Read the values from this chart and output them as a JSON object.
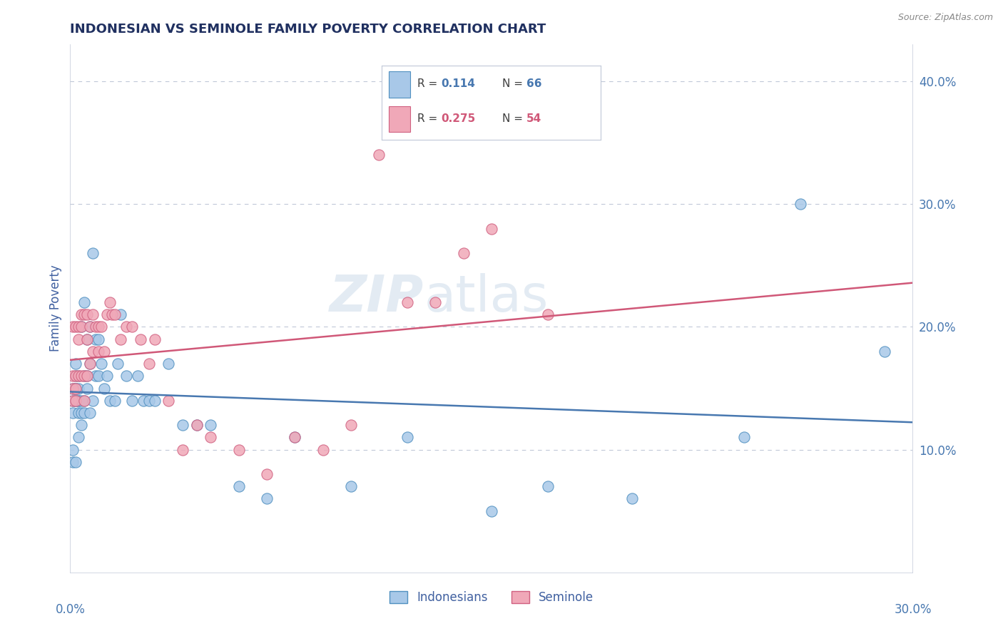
{
  "title": "INDONESIAN VS SEMINOLE FAMILY POVERTY CORRELATION CHART",
  "source": "Source: ZipAtlas.com",
  "ylabel": "Family Poverty",
  "xlim": [
    0.0,
    0.3
  ],
  "ylim": [
    0.0,
    0.43
  ],
  "yticks": [
    0.1,
    0.2,
    0.3,
    0.4
  ],
  "ytick_labels": [
    "10.0%",
    "20.0%",
    "30.0%",
    "40.0%"
  ],
  "xtick_left": "0.0%",
  "xtick_right": "30.0%",
  "blue_color": "#a8c8e8",
  "pink_color": "#f0a8b8",
  "blue_edge_color": "#5090c0",
  "pink_edge_color": "#d06080",
  "blue_line_color": "#4878b0",
  "pink_line_color": "#d05878",
  "title_color": "#203060",
  "axis_label_color": "#4060a0",
  "tick_label_color": "#4878b0",
  "watermark_text": "ZIPatlas",
  "legend_r1_val": "0.114",
  "legend_n1_val": "66",
  "legend_r2_val": "0.275",
  "legend_n2_val": "54",
  "indonesians_x": [
    0.001,
    0.001,
    0.001,
    0.001,
    0.001,
    0.002,
    0.002,
    0.002,
    0.002,
    0.002,
    0.002,
    0.002,
    0.003,
    0.003,
    0.003,
    0.003,
    0.003,
    0.003,
    0.004,
    0.004,
    0.004,
    0.004,
    0.005,
    0.005,
    0.005,
    0.005,
    0.006,
    0.006,
    0.006,
    0.007,
    0.007,
    0.007,
    0.008,
    0.008,
    0.009,
    0.009,
    0.01,
    0.01,
    0.011,
    0.012,
    0.013,
    0.014,
    0.016,
    0.017,
    0.018,
    0.02,
    0.022,
    0.024,
    0.026,
    0.028,
    0.03,
    0.035,
    0.04,
    0.045,
    0.05,
    0.06,
    0.07,
    0.08,
    0.1,
    0.12,
    0.15,
    0.17,
    0.2,
    0.24,
    0.26,
    0.29
  ],
  "indonesians_y": [
    0.13,
    0.14,
    0.15,
    0.09,
    0.1,
    0.14,
    0.14,
    0.15,
    0.15,
    0.16,
    0.17,
    0.09,
    0.13,
    0.14,
    0.14,
    0.15,
    0.16,
    0.11,
    0.12,
    0.13,
    0.14,
    0.2,
    0.13,
    0.14,
    0.16,
    0.22,
    0.15,
    0.16,
    0.19,
    0.13,
    0.17,
    0.2,
    0.14,
    0.26,
    0.16,
    0.19,
    0.16,
    0.19,
    0.17,
    0.15,
    0.16,
    0.14,
    0.14,
    0.17,
    0.21,
    0.16,
    0.14,
    0.16,
    0.14,
    0.14,
    0.14,
    0.17,
    0.12,
    0.12,
    0.12,
    0.07,
    0.06,
    0.11,
    0.07,
    0.11,
    0.05,
    0.07,
    0.06,
    0.11,
    0.3,
    0.18
  ],
  "seminole_x": [
    0.001,
    0.001,
    0.001,
    0.001,
    0.002,
    0.002,
    0.002,
    0.002,
    0.003,
    0.003,
    0.003,
    0.004,
    0.004,
    0.004,
    0.005,
    0.005,
    0.005,
    0.006,
    0.006,
    0.006,
    0.007,
    0.007,
    0.008,
    0.008,
    0.009,
    0.01,
    0.01,
    0.011,
    0.012,
    0.013,
    0.014,
    0.015,
    0.016,
    0.018,
    0.02,
    0.022,
    0.025,
    0.028,
    0.03,
    0.035,
    0.04,
    0.045,
    0.05,
    0.06,
    0.07,
    0.08,
    0.09,
    0.1,
    0.11,
    0.12,
    0.13,
    0.14,
    0.15,
    0.17
  ],
  "seminole_y": [
    0.14,
    0.15,
    0.16,
    0.2,
    0.14,
    0.15,
    0.16,
    0.2,
    0.16,
    0.19,
    0.2,
    0.16,
    0.2,
    0.21,
    0.14,
    0.16,
    0.21,
    0.16,
    0.19,
    0.21,
    0.17,
    0.2,
    0.18,
    0.21,
    0.2,
    0.18,
    0.2,
    0.2,
    0.18,
    0.21,
    0.22,
    0.21,
    0.21,
    0.19,
    0.2,
    0.2,
    0.19,
    0.17,
    0.19,
    0.14,
    0.1,
    0.12,
    0.11,
    0.1,
    0.08,
    0.11,
    0.1,
    0.12,
    0.34,
    0.22,
    0.22,
    0.26,
    0.28,
    0.21
  ]
}
